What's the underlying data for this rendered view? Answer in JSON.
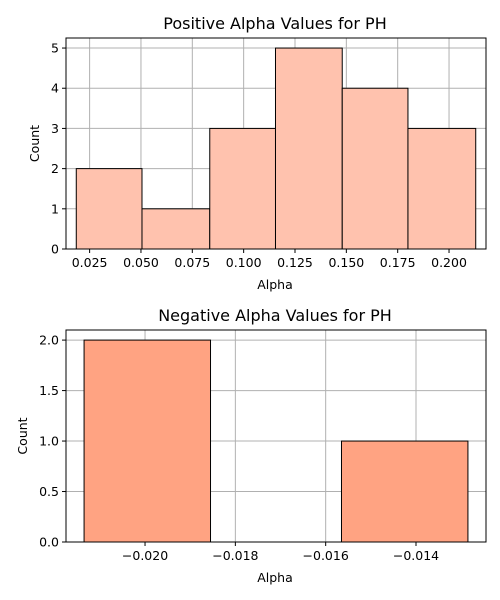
{
  "chart_data": [
    {
      "type": "bar",
      "title": "Positive Alpha Values for PH",
      "xlabel": "Alpha",
      "ylabel": "Count",
      "color": "#ffc2ae",
      "xlim": [
        0.0135,
        0.218
      ],
      "ylim": [
        0,
        5.25
      ],
      "xticks": [
        "0.025",
        "0.050",
        "0.075",
        "0.100",
        "0.125",
        "0.150",
        "0.175",
        "0.200"
      ],
      "yticks": [
        "0",
        "1",
        "2",
        "3",
        "4",
        "5"
      ],
      "grid": true,
      "bins": [
        {
          "x0": 0.0185,
          "x1": 0.0505,
          "value": 2
        },
        {
          "x0": 0.0505,
          "x1": 0.0835,
          "value": 1
        },
        {
          "x0": 0.0835,
          "x1": 0.1155,
          "value": 3
        },
        {
          "x0": 0.1155,
          "x1": 0.148,
          "value": 5
        },
        {
          "x0": 0.148,
          "x1": 0.18,
          "value": 4
        },
        {
          "x0": 0.18,
          "x1": 0.213,
          "value": 3
        }
      ]
    },
    {
      "type": "bar",
      "title": "Negative Alpha Values for PH",
      "xlabel": "Alpha",
      "ylabel": "Count",
      "color": "#ffa382",
      "xlim": [
        -0.02175,
        -0.01245
      ],
      "ylim": [
        0,
        2.1
      ],
      "xticks": [
        "−0.020",
        "−0.018",
        "−0.016",
        "−0.014"
      ],
      "yticks": [
        "0.0",
        "0.5",
        "1.0",
        "1.5",
        "2.0"
      ],
      "grid": true,
      "bins": [
        {
          "x0": -0.02135,
          "x1": -0.01855,
          "value": 2
        },
        {
          "x0": -0.01855,
          "x1": -0.01565,
          "value": 0
        },
        {
          "x0": -0.01565,
          "x1": -0.01285,
          "value": 1
        }
      ]
    }
  ]
}
